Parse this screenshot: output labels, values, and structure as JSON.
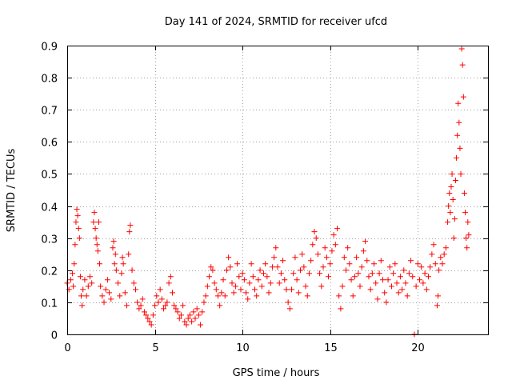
{
  "chart_data": {
    "type": "scatter",
    "title": "Day 141 of 2024, SRMTID for receiver ufcd",
    "xlabel": "GPS time / hours",
    "ylabel": "SRMTID / TECUs",
    "xlim": [
      0,
      24
    ],
    "ylim": [
      0,
      0.9
    ],
    "xticks": [
      0,
      5,
      10,
      15,
      20
    ],
    "xtick_labels": [
      "0",
      "5",
      "10",
      "15",
      "20"
    ],
    "yticks": [
      0,
      0.1,
      0.2,
      0.3,
      0.4,
      0.5,
      0.6,
      0.7,
      0.8,
      0.9
    ],
    "ytick_labels": [
      "0",
      "0.1",
      "0.2",
      "0.3",
      "0.4",
      "0.5",
      "0.6",
      "0.7",
      "0.8",
      "0.9"
    ],
    "grid": true,
    "marker": "+",
    "color": "#ff0000",
    "series": [
      {
        "name": "SRMTID",
        "points": [
          [
            0.0,
            0.16
          ],
          [
            0.1,
            0.14
          ],
          [
            0.2,
            0.17
          ],
          [
            0.3,
            0.19
          ],
          [
            0.35,
            0.15
          ],
          [
            0.4,
            0.22
          ],
          [
            0.45,
            0.28
          ],
          [
            0.5,
            0.35
          ],
          [
            0.55,
            0.39
          ],
          [
            0.6,
            0.37
          ],
          [
            0.65,
            0.33
          ],
          [
            0.7,
            0.3
          ],
          [
            0.75,
            0.18
          ],
          [
            0.8,
            0.12
          ],
          [
            0.85,
            0.09
          ],
          [
            0.9,
            0.14
          ],
          [
            1.0,
            0.17
          ],
          [
            1.1,
            0.12
          ],
          [
            1.2,
            0.15
          ],
          [
            1.3,
            0.18
          ],
          [
            1.4,
            0.16
          ],
          [
            1.5,
            0.35
          ],
          [
            1.55,
            0.38
          ],
          [
            1.6,
            0.33
          ],
          [
            1.65,
            0.3
          ],
          [
            1.7,
            0.28
          ],
          [
            1.75,
            0.26
          ],
          [
            1.8,
            0.35
          ],
          [
            1.85,
            0.22
          ],
          [
            1.9,
            0.15
          ],
          [
            2.0,
            0.12
          ],
          [
            2.1,
            0.1
          ],
          [
            2.2,
            0.14
          ],
          [
            2.3,
            0.17
          ],
          [
            2.4,
            0.13
          ],
          [
            2.5,
            0.11
          ],
          [
            2.6,
            0.27
          ],
          [
            2.65,
            0.29
          ],
          [
            2.7,
            0.22
          ],
          [
            2.75,
            0.25
          ],
          [
            2.8,
            0.2
          ],
          [
            2.9,
            0.16
          ],
          [
            3.0,
            0.12
          ],
          [
            3.1,
            0.19
          ],
          [
            3.15,
            0.24
          ],
          [
            3.2,
            0.22
          ],
          [
            3.3,
            0.13
          ],
          [
            3.4,
            0.09
          ],
          [
            3.5,
            0.25
          ],
          [
            3.55,
            0.32
          ],
          [
            3.6,
            0.34
          ],
          [
            3.7,
            0.2
          ],
          [
            3.8,
            0.16
          ],
          [
            3.9,
            0.14
          ],
          [
            4.0,
            0.1
          ],
          [
            4.1,
            0.08
          ],
          [
            4.2,
            0.09
          ],
          [
            4.3,
            0.11
          ],
          [
            4.4,
            0.07
          ],
          [
            4.5,
            0.06
          ],
          [
            4.6,
            0.05
          ],
          [
            4.7,
            0.04
          ],
          [
            4.8,
            0.03
          ],
          [
            4.9,
            0.06
          ],
          [
            5.0,
            0.09
          ],
          [
            5.1,
            0.12
          ],
          [
            5.2,
            0.1
          ],
          [
            5.3,
            0.14
          ],
          [
            5.4,
            0.11
          ],
          [
            5.5,
            0.08
          ],
          [
            5.6,
            0.09
          ],
          [
            5.7,
            0.1
          ],
          [
            5.8,
            0.16
          ],
          [
            5.9,
            0.18
          ],
          [
            6.0,
            0.13
          ],
          [
            6.1,
            0.09
          ],
          [
            6.2,
            0.08
          ],
          [
            6.3,
            0.07
          ],
          [
            6.4,
            0.05
          ],
          [
            6.5,
            0.06
          ],
          [
            6.6,
            0.09
          ],
          [
            6.7,
            0.04
          ],
          [
            6.8,
            0.03
          ],
          [
            6.9,
            0.05
          ],
          [
            7.0,
            0.06
          ],
          [
            7.1,
            0.04
          ],
          [
            7.2,
            0.07
          ],
          [
            7.3,
            0.05
          ],
          [
            7.4,
            0.08
          ],
          [
            7.5,
            0.06
          ],
          [
            7.6,
            0.03
          ],
          [
            7.7,
            0.07
          ],
          [
            7.8,
            0.1
          ],
          [
            7.9,
            0.12
          ],
          [
            8.0,
            0.15
          ],
          [
            8.1,
            0.18
          ],
          [
            8.2,
            0.21
          ],
          [
            8.3,
            0.2
          ],
          [
            8.4,
            0.16
          ],
          [
            8.5,
            0.14
          ],
          [
            8.6,
            0.12
          ],
          [
            8.7,
            0.09
          ],
          [
            8.8,
            0.13
          ],
          [
            8.9,
            0.17
          ],
          [
            9.0,
            0.12
          ],
          [
            9.1,
            0.2
          ],
          [
            9.2,
            0.24
          ],
          [
            9.3,
            0.21
          ],
          [
            9.4,
            0.16
          ],
          [
            9.5,
            0.13
          ],
          [
            9.6,
            0.15
          ],
          [
            9.7,
            0.22
          ],
          [
            9.8,
            0.18
          ],
          [
            9.9,
            0.14
          ],
          [
            10.0,
            0.19
          ],
          [
            10.1,
            0.17
          ],
          [
            10.2,
            0.13
          ],
          [
            10.3,
            0.11
          ],
          [
            10.4,
            0.16
          ],
          [
            10.5,
            0.22
          ],
          [
            10.6,
            0.18
          ],
          [
            10.7,
            0.14
          ],
          [
            10.8,
            0.12
          ],
          [
            10.9,
            0.17
          ],
          [
            11.0,
            0.2
          ],
          [
            11.1,
            0.15
          ],
          [
            11.2,
            0.19
          ],
          [
            11.3,
            0.22
          ],
          [
            11.4,
            0.18
          ],
          [
            11.5,
            0.13
          ],
          [
            11.6,
            0.16
          ],
          [
            11.7,
            0.21
          ],
          [
            11.8,
            0.24
          ],
          [
            11.9,
            0.27
          ],
          [
            12.0,
            0.21
          ],
          [
            12.1,
            0.16
          ],
          [
            12.2,
            0.19
          ],
          [
            12.3,
            0.23
          ],
          [
            12.4,
            0.17
          ],
          [
            12.5,
            0.14
          ],
          [
            12.6,
            0.1
          ],
          [
            12.7,
            0.08
          ],
          [
            12.8,
            0.14
          ],
          [
            12.9,
            0.19
          ],
          [
            13.0,
            0.24
          ],
          [
            13.1,
            0.17
          ],
          [
            13.2,
            0.13
          ],
          [
            13.3,
            0.2
          ],
          [
            13.4,
            0.25
          ],
          [
            13.5,
            0.21
          ],
          [
            13.6,
            0.15
          ],
          [
            13.7,
            0.12
          ],
          [
            13.8,
            0.19
          ],
          [
            13.9,
            0.23
          ],
          [
            14.0,
            0.28
          ],
          [
            14.1,
            0.32
          ],
          [
            14.2,
            0.3
          ],
          [
            14.3,
            0.25
          ],
          [
            14.4,
            0.19
          ],
          [
            14.5,
            0.15
          ],
          [
            14.6,
            0.21
          ],
          [
            14.7,
            0.27
          ],
          [
            14.8,
            0.24
          ],
          [
            14.9,
            0.18
          ],
          [
            15.0,
            0.22
          ],
          [
            15.1,
            0.26
          ],
          [
            15.2,
            0.31
          ],
          [
            15.3,
            0.28
          ],
          [
            15.4,
            0.33
          ],
          [
            15.5,
            0.12
          ],
          [
            15.6,
            0.08
          ],
          [
            15.7,
            0.15
          ],
          [
            15.8,
            0.24
          ],
          [
            15.9,
            0.2
          ],
          [
            16.0,
            0.27
          ],
          [
            16.1,
            0.22
          ],
          [
            16.2,
            0.17
          ],
          [
            16.3,
            0.12
          ],
          [
            16.4,
            0.18
          ],
          [
            16.5,
            0.24
          ],
          [
            16.6,
            0.19
          ],
          [
            16.7,
            0.15
          ],
          [
            16.8,
            0.21
          ],
          [
            16.9,
            0.26
          ],
          [
            17.0,
            0.29
          ],
          [
            17.1,
            0.23
          ],
          [
            17.2,
            0.18
          ],
          [
            17.3,
            0.14
          ],
          [
            17.4,
            0.19
          ],
          [
            17.5,
            0.22
          ],
          [
            17.6,
            0.16
          ],
          [
            17.7,
            0.11
          ],
          [
            17.8,
            0.19
          ],
          [
            17.9,
            0.23
          ],
          [
            18.0,
            0.17
          ],
          [
            18.1,
            0.13
          ],
          [
            18.2,
            0.1
          ],
          [
            18.3,
            0.17
          ],
          [
            18.4,
            0.21
          ],
          [
            18.5,
            0.15
          ],
          [
            18.6,
            0.19
          ],
          [
            18.7,
            0.22
          ],
          [
            18.8,
            0.16
          ],
          [
            18.9,
            0.13
          ],
          [
            19.0,
            0.18
          ],
          [
            19.1,
            0.14
          ],
          [
            19.2,
            0.2
          ],
          [
            19.3,
            0.16
          ],
          [
            19.4,
            0.12
          ],
          [
            19.5,
            0.19
          ],
          [
            19.6,
            0.23
          ],
          [
            19.7,
            0.18
          ],
          [
            19.8,
            0.0
          ],
          [
            19.9,
            0.15
          ],
          [
            20.0,
            0.22
          ],
          [
            20.1,
            0.17
          ],
          [
            20.2,
            0.21
          ],
          [
            20.3,
            0.16
          ],
          [
            20.4,
            0.19
          ],
          [
            20.5,
            0.14
          ],
          [
            20.6,
            0.18
          ],
          [
            20.7,
            0.21
          ],
          [
            20.8,
            0.25
          ],
          [
            20.9,
            0.28
          ],
          [
            21.0,
            0.22
          ],
          [
            21.1,
            0.09
          ],
          [
            21.15,
            0.12
          ],
          [
            21.2,
            0.2
          ],
          [
            21.3,
            0.24
          ],
          [
            21.4,
            0.22
          ],
          [
            21.5,
            0.25
          ],
          [
            21.6,
            0.27
          ],
          [
            21.7,
            0.35
          ],
          [
            21.75,
            0.4
          ],
          [
            21.8,
            0.44
          ],
          [
            21.85,
            0.38
          ],
          [
            21.9,
            0.46
          ],
          [
            21.95,
            0.5
          ],
          [
            22.0,
            0.42
          ],
          [
            22.05,
            0.3
          ],
          [
            22.1,
            0.36
          ],
          [
            22.15,
            0.48
          ],
          [
            22.2,
            0.55
          ],
          [
            22.25,
            0.62
          ],
          [
            22.3,
            0.72
          ],
          [
            22.35,
            0.66
          ],
          [
            22.4,
            0.58
          ],
          [
            22.45,
            0.5
          ],
          [
            22.5,
            0.89
          ],
          [
            22.55,
            0.84
          ],
          [
            22.6,
            0.74
          ],
          [
            22.65,
            0.44
          ],
          [
            22.7,
            0.38
          ],
          [
            22.75,
            0.3
          ],
          [
            22.8,
            0.27
          ],
          [
            22.85,
            0.35
          ],
          [
            22.9,
            0.31
          ]
        ]
      }
    ]
  }
}
